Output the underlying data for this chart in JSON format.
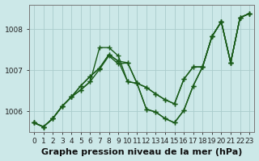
{
  "xlabel": "Graphe pression niveau de la mer (hPa)",
  "bg_color": "#cce8e8",
  "grid_color": "#aacccc",
  "line_color": "#1a5c1a",
  "marker": "+",
  "markersize": 4,
  "linewidth": 1.0,
  "x_ticks": [
    0,
    1,
    2,
    3,
    4,
    5,
    6,
    7,
    8,
    9,
    10,
    11,
    12,
    13,
    14,
    15,
    16,
    17,
    18,
    19,
    20,
    21,
    22,
    23
  ],
  "ylim": [
    1005.5,
    1008.6
  ],
  "yticks": [
    1006,
    1007,
    1008
  ],
  "series": [
    [
      1005.72,
      1005.62,
      1005.82,
      1006.12,
      1006.35,
      1006.52,
      1006.72,
      1007.55,
      1007.55,
      1007.35,
      1006.72,
      1006.68,
      1006.05,
      1005.98,
      1005.82,
      1005.72,
      1006.02,
      1006.62,
      1007.08,
      1007.82,
      1008.18,
      1007.18,
      1008.28,
      1008.38
    ],
    [
      1005.72,
      1005.62,
      1005.82,
      1006.12,
      1006.35,
      1006.52,
      1006.72,
      1007.02,
      1007.35,
      1007.15,
      1007.18,
      1006.68,
      1006.58,
      1006.42,
      1006.28,
      1006.18,
      1006.78,
      1007.08,
      1007.08,
      1007.82,
      1008.18,
      1007.18,
      1008.28,
      1008.38
    ],
    [
      1005.72,
      1005.62,
      1005.82,
      1006.12,
      1006.35,
      1006.62,
      1006.85,
      1007.05,
      1007.38,
      1007.22,
      1006.72,
      1006.68,
      1006.05,
      1005.98,
      1005.82,
      1005.72,
      1006.02,
      1006.62,
      1007.08,
      1007.82,
      1008.18,
      1007.18,
      1008.28,
      1008.38
    ],
    [
      1005.72,
      1005.62,
      1005.82,
      1006.12,
      1006.35,
      1006.62,
      1006.85,
      1007.05,
      1007.38,
      1007.22,
      1007.18,
      1006.68,
      1006.58,
      1006.42,
      1006.28,
      1006.18,
      1006.78,
      1007.08,
      1007.08,
      1007.82,
      1008.18,
      1007.18,
      1008.28,
      1008.38
    ]
  ],
  "xlabel_fontsize": 8,
  "tick_fontsize": 6.5
}
